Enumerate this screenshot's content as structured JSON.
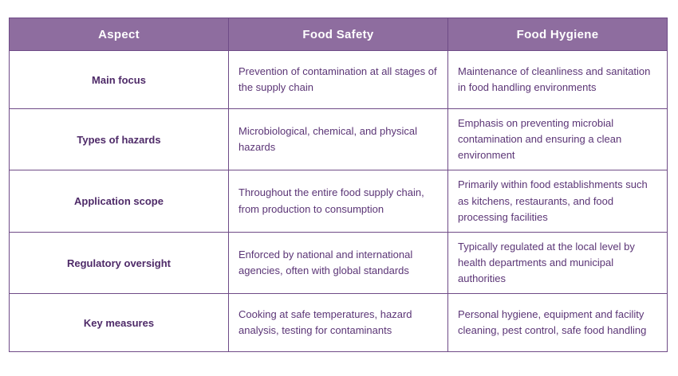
{
  "colors": {
    "header_bg": "#8e6d9f",
    "border": "#6f4b87",
    "header_text": "#ffffff",
    "cell_text": "#5b3576",
    "label_text": "#4e2a68",
    "page_bg": "#ffffff"
  },
  "table": {
    "columns": [
      "Aspect",
      "Food Safety",
      "Food Hygiene"
    ],
    "rows": [
      [
        "Main focus",
        "Prevention of contamination at all stages of the supply chain",
        "Maintenance of cleanliness and sanitation in food handling environments"
      ],
      [
        "Types of hazards",
        "Microbiological, chemical, and physical hazards",
        "Emphasis on preventing microbial contamination and ensuring a clean environment"
      ],
      [
        "Application scope",
        "Throughout the entire food supply chain, from production to consumption",
        "Primarily within food establishments such as kitchens, restaurants, and food processing facilities"
      ],
      [
        "Regulatory oversight",
        "Enforced by national and international agencies, often with global standards",
        "Typically regulated at the local level by health departments and municipal authorities"
      ],
      [
        "Key measures",
        "Cooking at safe temperatures, hazard analysis, testing for contaminants",
        "Personal hygiene, equipment and facility cleaning, pest control, safe food handling"
      ]
    ]
  }
}
